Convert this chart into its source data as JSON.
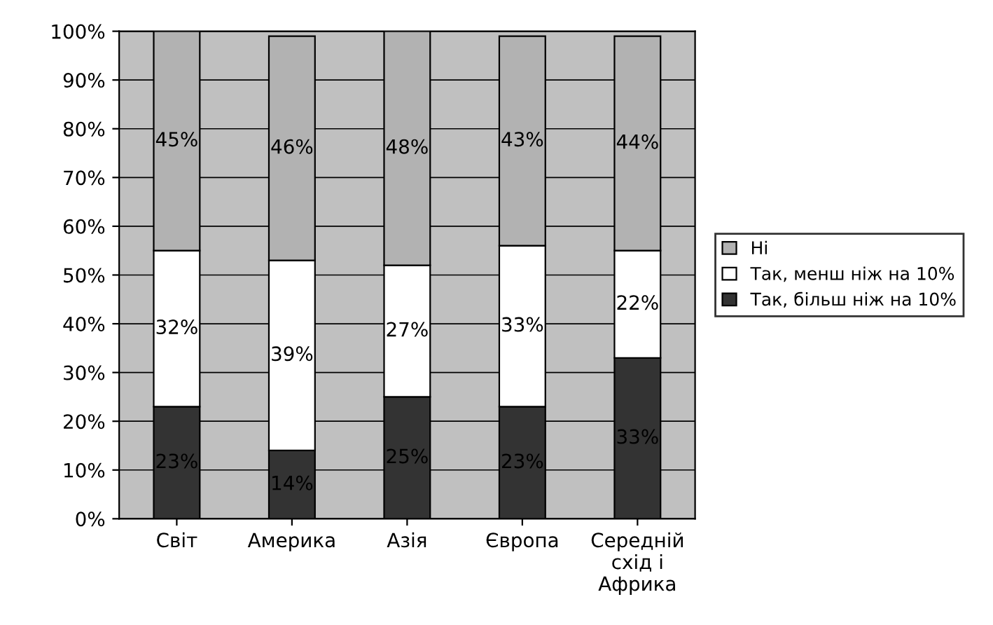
{
  "chart_data": {
    "type": "bar",
    "stacked": true,
    "categories": [
      "Світ",
      "Америка",
      "Азія",
      "Європа",
      "Середній\nсхід і\nАфрика"
    ],
    "series": [
      {
        "name": "Так, більш ніж на 10%",
        "color": "#333333",
        "values": [
          23,
          14,
          25,
          23,
          33
        ],
        "value_labels": [
          "23%",
          "14%",
          "25%",
          "23%",
          "33%"
        ]
      },
      {
        "name": "Так, менш ніж на 10%",
        "color": "#ffffff",
        "values": [
          32,
          39,
          27,
          33,
          22
        ],
        "value_labels": [
          "32%",
          "39%",
          "27%",
          "33%",
          "22%"
        ]
      },
      {
        "name": "Ні",
        "color": "#b2b2b2",
        "values": [
          45,
          46,
          48,
          43,
          44
        ],
        "value_labels": [
          "45%",
          "46%",
          "48%",
          "43%",
          "44%"
        ]
      }
    ],
    "ylim": [
      0,
      100
    ],
    "yticks": [
      {
        "value": 0,
        "label": "0%"
      },
      {
        "value": 10,
        "label": "10%"
      },
      {
        "value": 20,
        "label": "20%"
      },
      {
        "value": 30,
        "label": "30%"
      },
      {
        "value": 40,
        "label": "40%"
      },
      {
        "value": 50,
        "label": "50%"
      },
      {
        "value": 60,
        "label": "60%"
      },
      {
        "value": 70,
        "label": "70%"
      },
      {
        "value": 80,
        "label": "80%"
      },
      {
        "value": 90,
        "label": "90%"
      },
      {
        "value": 100,
        "label": "100%"
      }
    ],
    "grid": "y",
    "legend": "right"
  }
}
